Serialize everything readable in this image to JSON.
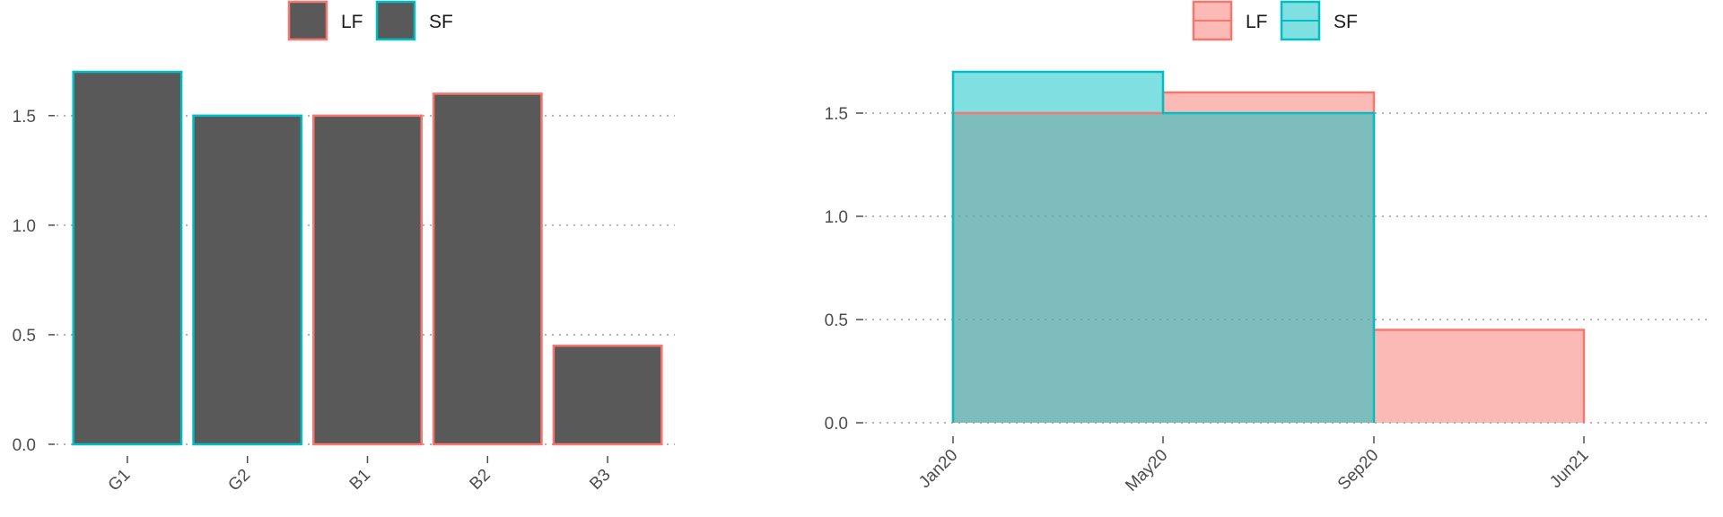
{
  "colors": {
    "lf": "#F8766D",
    "sf": "#00BFC4",
    "bar_fill": "#595959",
    "grid": "#b3b3b3",
    "axis_text": "#4d4d4d"
  },
  "chart_data": [
    {
      "type": "bar",
      "title": "",
      "xlabel": "",
      "ylabel": "",
      "categories": [
        "G1",
        "G2",
        "B1",
        "B2",
        "B3"
      ],
      "values": [
        1.7,
        1.5,
        1.5,
        1.6,
        0.45
      ],
      "groups": [
        "SF",
        "SF",
        "LF",
        "LF",
        "LF"
      ],
      "ylim": [
        0,
        1.7
      ],
      "yticks": [
        0.0,
        0.5,
        1.0,
        1.5
      ],
      "ytick_labels": [
        "0.0",
        "0.5",
        "1.0",
        "1.5"
      ],
      "legend": {
        "position": "top",
        "entries": [
          "LF",
          "SF"
        ]
      },
      "grid": "horizontal-dotted"
    },
    {
      "type": "area",
      "title": "",
      "xlabel": "",
      "ylabel": "",
      "step": true,
      "x_ticks": [
        "Jan20",
        "May20",
        "Sep20",
        "Jun21"
      ],
      "series": [
        {
          "name": "LF",
          "x": [
            "Jan20",
            "May20",
            "Sep20",
            "Jun21"
          ],
          "values": [
            1.5,
            1.6,
            0.45,
            0.45
          ]
        },
        {
          "name": "SF",
          "x": [
            "Jan20",
            "May20",
            "Sep20"
          ],
          "values": [
            1.7,
            1.5,
            1.5
          ]
        }
      ],
      "ylim": [
        0,
        1.7
      ],
      "yticks": [
        0.0,
        0.5,
        1.0,
        1.5
      ],
      "ytick_labels": [
        "0.0",
        "0.5",
        "1.0",
        "1.5"
      ],
      "legend": {
        "position": "top",
        "entries": [
          "LF",
          "SF"
        ]
      },
      "grid": "horizontal-dotted"
    }
  ]
}
